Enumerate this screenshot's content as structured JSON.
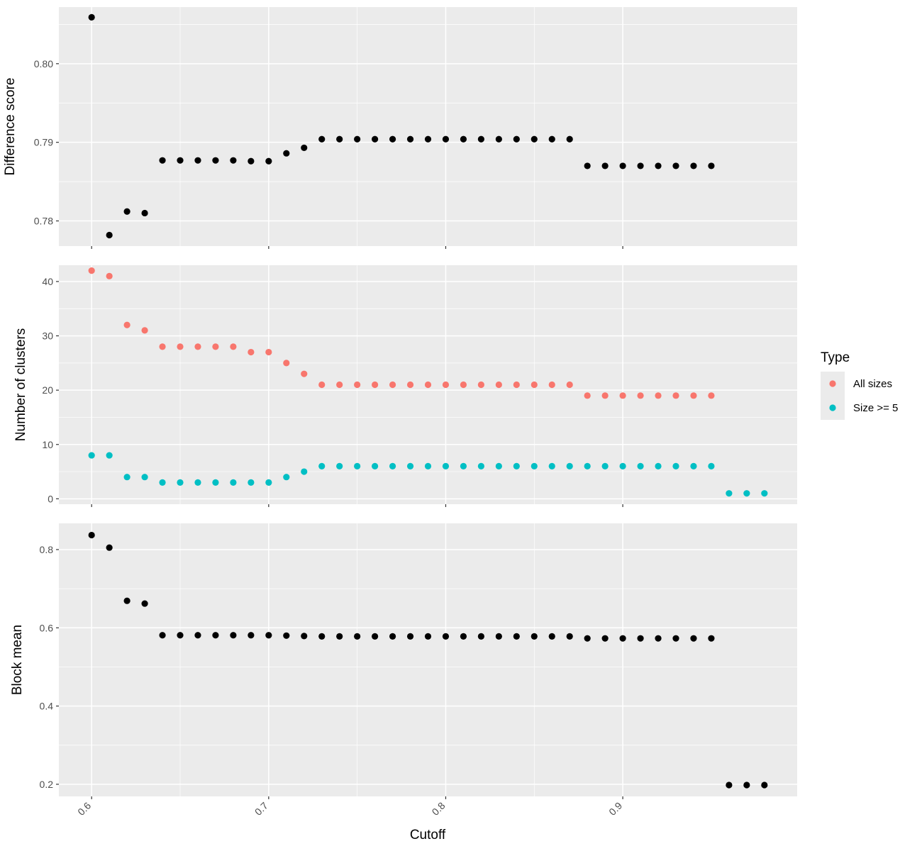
{
  "chart_data": {
    "type": "scatter",
    "xlabel": "Cutoff",
    "x_ticks": [
      "0.6",
      "0.7",
      "0.8",
      "0.9"
    ],
    "xlim": [
      0.5815,
      0.9985
    ],
    "panel_background": "#ebebeb",
    "grid_color": "#ffffff",
    "legend": {
      "title": "Type",
      "placement": "right",
      "entries": [
        {
          "label": "All sizes",
          "color": "#f8766d"
        },
        {
          "label": "Size >= 5",
          "color": "#00bfc4"
        }
      ]
    },
    "panels": [
      {
        "ylabel": "Difference score",
        "ylim": [
          0.7768,
          0.8072
        ],
        "y_ticks": [
          "0.78",
          "0.79",
          "0.80"
        ],
        "y_tick_values": [
          0.78,
          0.79,
          0.8
        ],
        "series": [
          {
            "color": "#000000",
            "x": [
              0.6,
              0.61,
              0.62,
              0.63,
              0.64,
              0.65,
              0.66,
              0.67,
              0.68,
              0.69,
              0.7,
              0.71,
              0.72,
              0.73,
              0.74,
              0.75,
              0.76,
              0.77,
              0.78,
              0.79,
              0.8,
              0.81,
              0.82,
              0.83,
              0.84,
              0.85,
              0.86,
              0.87,
              0.88,
              0.89,
              0.9,
              0.91,
              0.92,
              0.93,
              0.94,
              0.95
            ],
            "y": [
              0.8059,
              0.7782,
              0.7812,
              0.781,
              0.7877,
              0.7877,
              0.7877,
              0.7877,
              0.7877,
              0.7876,
              0.7876,
              0.7886,
              0.7893,
              0.7904,
              0.7904,
              0.7904,
              0.7904,
              0.7904,
              0.7904,
              0.7904,
              0.7904,
              0.7904,
              0.7904,
              0.7904,
              0.7904,
              0.7904,
              0.7904,
              0.7904,
              0.787,
              0.787,
              0.787,
              0.787,
              0.787,
              0.787,
              0.787,
              0.787
            ]
          }
        ]
      },
      {
        "ylabel": "Number of clusters",
        "ylim": [
          -1,
          43
        ],
        "y_ticks": [
          "0",
          "10",
          "20",
          "30",
          "40"
        ],
        "y_tick_values": [
          0,
          10,
          20,
          30,
          40
        ],
        "series": [
          {
            "name": "All sizes",
            "color": "#f8766d",
            "x": [
              0.6,
              0.61,
              0.62,
              0.63,
              0.64,
              0.65,
              0.66,
              0.67,
              0.68,
              0.69,
              0.7,
              0.71,
              0.72,
              0.73,
              0.74,
              0.75,
              0.76,
              0.77,
              0.78,
              0.79,
              0.8,
              0.81,
              0.82,
              0.83,
              0.84,
              0.85,
              0.86,
              0.87,
              0.88,
              0.89,
              0.9,
              0.91,
              0.92,
              0.93,
              0.94,
              0.95
            ],
            "y": [
              42,
              41,
              32,
              31,
              28,
              28,
              28,
              28,
              28,
              27,
              27,
              25,
              23,
              21,
              21,
              21,
              21,
              21,
              21,
              21,
              21,
              21,
              21,
              21,
              21,
              21,
              21,
              21,
              19,
              19,
              19,
              19,
              19,
              19,
              19,
              19
            ]
          },
          {
            "name": "Size >= 5",
            "color": "#00bfc4",
            "x": [
              0.6,
              0.61,
              0.62,
              0.63,
              0.64,
              0.65,
              0.66,
              0.67,
              0.68,
              0.69,
              0.7,
              0.71,
              0.72,
              0.73,
              0.74,
              0.75,
              0.76,
              0.77,
              0.78,
              0.79,
              0.8,
              0.81,
              0.82,
              0.83,
              0.84,
              0.85,
              0.86,
              0.87,
              0.88,
              0.89,
              0.9,
              0.91,
              0.92,
              0.93,
              0.94,
              0.95,
              0.96,
              0.97,
              0.98
            ],
            "y": [
              8,
              8,
              4,
              4,
              3,
              3,
              3,
              3,
              3,
              3,
              3,
              4,
              5,
              6,
              6,
              6,
              6,
              6,
              6,
              6,
              6,
              6,
              6,
              6,
              6,
              6,
              6,
              6,
              6,
              6,
              6,
              6,
              6,
              6,
              6,
              6,
              1,
              1,
              1
            ]
          }
        ]
      },
      {
        "ylabel": "Block mean",
        "ylim": [
          0.169,
          0.867
        ],
        "y_ticks": [
          "0.2",
          "0.4",
          "0.6",
          "0.8"
        ],
        "y_tick_values": [
          0.2,
          0.4,
          0.6,
          0.8
        ],
        "series": [
          {
            "color": "#000000",
            "x": [
              0.6,
              0.61,
              0.62,
              0.63,
              0.64,
              0.65,
              0.66,
              0.67,
              0.68,
              0.69,
              0.7,
              0.71,
              0.72,
              0.73,
              0.74,
              0.75,
              0.76,
              0.77,
              0.78,
              0.79,
              0.8,
              0.81,
              0.82,
              0.83,
              0.84,
              0.85,
              0.86,
              0.87,
              0.88,
              0.89,
              0.9,
              0.91,
              0.92,
              0.93,
              0.94,
              0.95,
              0.96,
              0.97,
              0.98
            ],
            "y": [
              0.837,
              0.805,
              0.669,
              0.662,
              0.581,
              0.581,
              0.581,
              0.581,
              0.581,
              0.581,
              0.581,
              0.58,
              0.579,
              0.578,
              0.578,
              0.578,
              0.578,
              0.578,
              0.578,
              0.578,
              0.578,
              0.578,
              0.578,
              0.578,
              0.578,
              0.578,
              0.578,
              0.578,
              0.573,
              0.573,
              0.573,
              0.573,
              0.573,
              0.573,
              0.573,
              0.573,
              0.198,
              0.198,
              0.198
            ]
          }
        ]
      }
    ]
  }
}
